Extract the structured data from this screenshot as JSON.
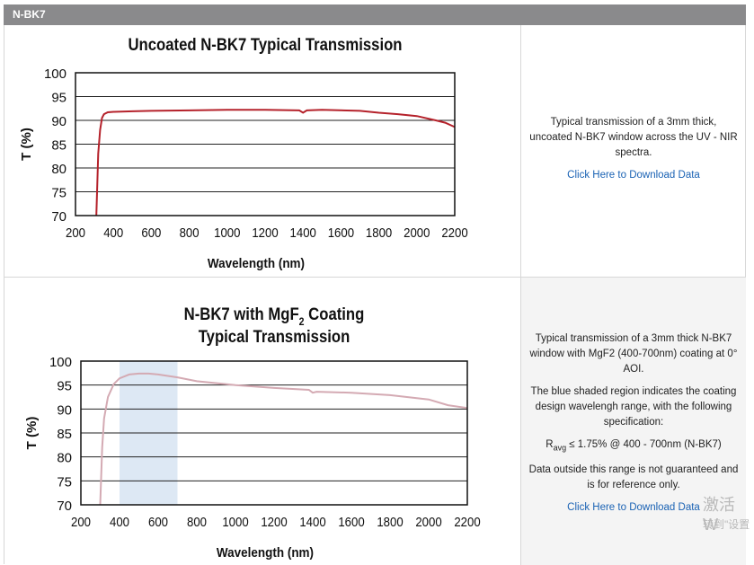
{
  "header": {
    "title": "N-BK7"
  },
  "charts": [
    {
      "id": "chart1",
      "title_lines": [
        "Uncoated N-BK7 Typical Transmission"
      ],
      "xlabel": "Wavelength (nm)",
      "ylabel": "T (%)",
      "line_color": "#b5222b"
    },
    {
      "id": "chart2",
      "title_lines": [
        "N-BK7 with MgF",
        "Typical Transmission"
      ],
      "title_subscript": "2",
      "title_suffix": " Coating",
      "xlabel": "Wavelength (nm)",
      "ylabel": "T (%)",
      "line_color": "#d4aab3",
      "shade_color": "#dde8f4"
    }
  ],
  "chart_data": [
    {
      "type": "line",
      "title": "Uncoated N-BK7 Typical Transmission",
      "xlabel": "Wavelength (nm)",
      "ylabel": "T (%)",
      "xlim": [
        200,
        2200
      ],
      "ylim": [
        70,
        100
      ],
      "xticks": [
        200,
        400,
        600,
        800,
        1000,
        1200,
        1400,
        1600,
        1800,
        2000,
        2200
      ],
      "yticks": [
        70,
        75,
        80,
        85,
        90,
        95,
        100
      ],
      "series": [
        {
          "x": [
            310,
            320,
            330,
            340,
            350,
            370,
            400,
            500,
            600,
            800,
            1000,
            1200,
            1380,
            1400,
            1420,
            1500,
            1700,
            1800,
            1900,
            2000,
            2100,
            2150,
            2200
          ],
          "y": [
            70,
            83,
            88,
            90.5,
            91.3,
            91.7,
            91.8,
            91.9,
            92.0,
            92.1,
            92.2,
            92.2,
            92.1,
            91.6,
            92.1,
            92.2,
            92.0,
            91.6,
            91.3,
            90.9,
            90.0,
            89.5,
            88.6
          ]
        }
      ]
    },
    {
      "type": "line",
      "title": "N-BK7 with MgF2 Coating Typical Transmission",
      "xlabel": "Wavelength (nm)",
      "ylabel": "T (%)",
      "xlim": [
        200,
        2200
      ],
      "ylim": [
        70,
        100
      ],
      "xticks": [
        200,
        400,
        600,
        800,
        1000,
        1200,
        1400,
        1600,
        1800,
        2000,
        2200
      ],
      "yticks": [
        70,
        75,
        80,
        85,
        90,
        95,
        100
      ],
      "shaded_region": [
        400,
        700
      ],
      "series": [
        {
          "x": [
            300,
            310,
            320,
            340,
            370,
            400,
            450,
            500,
            550,
            600,
            700,
            800,
            1000,
            1200,
            1380,
            1400,
            1420,
            1600,
            1800,
            2000,
            2100,
            2200
          ],
          "y": [
            70,
            82,
            88,
            92.5,
            95.2,
            96.4,
            97.2,
            97.4,
            97.4,
            97.2,
            96.6,
            95.8,
            95.0,
            94.4,
            94.0,
            93.4,
            93.6,
            93.4,
            92.9,
            92.0,
            90.8,
            90.2
          ]
        }
      ]
    }
  ],
  "descriptions": {
    "row1": {
      "text": "Typical transmission of a 3mm thick, uncoated N-BK7 window across the UV - NIR spectra.",
      "link": "Click Here to Download Data"
    },
    "row2": {
      "text1": "Typical transmission of a 3mm thick N-BK7 window with MgF2 (400-700nm) coating at 0° AOI.",
      "text2": "The blue shaded region indicates the coating design wavelengh range, with the following specification:",
      "spec_r": "R",
      "spec_sub": "avg",
      "spec_rest": " ≤ 1.75% @ 400 - 700nm (N-BK7)",
      "text3": "Data outside this range is not guaranteed and is for reference only.",
      "link": "Click Here to Download Data"
    }
  },
  "watermark": {
    "line1": "激活 W",
    "line2": "转到\"设置"
  }
}
